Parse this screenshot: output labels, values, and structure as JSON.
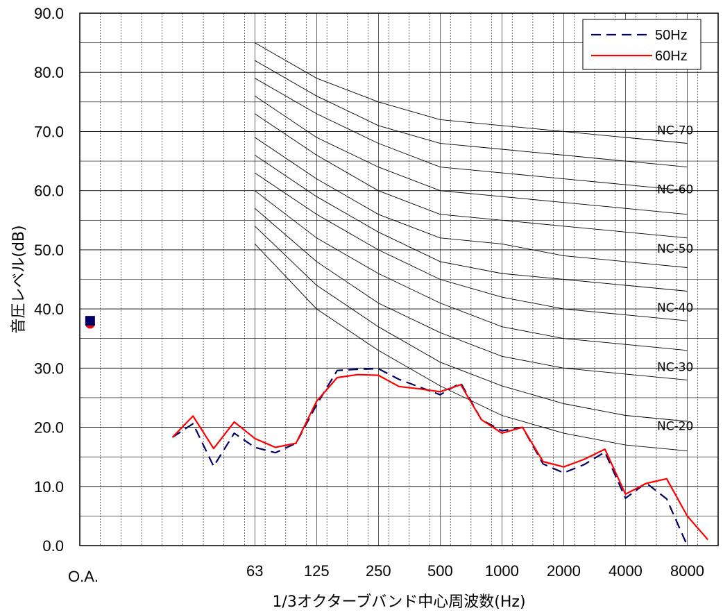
{
  "chart_data": {
    "type": "line",
    "xlabel": "1/3オクターブバンド中心周波数(Hz)",
    "ylabel": "音圧レベル(dB)",
    "ylim": [
      0,
      90
    ],
    "grid": true,
    "legend_position": "top-right",
    "x_positions": [
      "O.A.",
      "",
      "",
      "",
      "25",
      "31.5",
      "40",
      "50",
      "63",
      "80",
      "100",
      "125",
      "160",
      "200",
      "250",
      "315",
      "400",
      "500",
      "630",
      "800",
      "1000",
      "1250",
      "1600",
      "2000",
      "2500",
      "3150",
      "4000",
      "5000",
      "6300",
      "8000",
      "10000"
    ],
    "x_tick_labels": [
      {
        "index": 0,
        "label": "O.A."
      },
      {
        "index": 8,
        "label": "63"
      },
      {
        "index": 11,
        "label": "125"
      },
      {
        "index": 14,
        "label": "250"
      },
      {
        "index": 17,
        "label": "500"
      },
      {
        "index": 20,
        "label": "1000"
      },
      {
        "index": 23,
        "label": "2000"
      },
      {
        "index": 26,
        "label": "4000"
      },
      {
        "index": 29,
        "label": "8000"
      }
    ],
    "y_tick_labels": [
      "0.0",
      "10.0",
      "20.0",
      "30.0",
      "40.0",
      "50.0",
      "60.0",
      "70.0",
      "80.0",
      "90.0"
    ],
    "oa_values": {
      "50Hz": 38.0,
      "60Hz": 37.5
    },
    "series": [
      {
        "name": "50Hz",
        "color": "#000066",
        "dash": true,
        "start_index": 4,
        "values": [
          18.3,
          20.6,
          13.4,
          19.0,
          16.6,
          15.7,
          17.3,
          23.8,
          29.6,
          29.8,
          29.9,
          28.1,
          26.8,
          25.5,
          27.5,
          21.3,
          19.4,
          20.0,
          13.8,
          12.3,
          13.7,
          15.8,
          8.0,
          10.6,
          7.9,
          0.0
        ]
      },
      {
        "name": "60Hz",
        "color": "#ff0000",
        "dash": false,
        "start_index": 4,
        "values": [
          18.3,
          21.9,
          16.4,
          20.9,
          18.1,
          16.6,
          17.3,
          24.4,
          28.4,
          28.9,
          28.8,
          26.9,
          26.5,
          26.0,
          27.2,
          21.3,
          19.0,
          20.0,
          14.2,
          13.3,
          14.6,
          16.3,
          8.7,
          10.5,
          11.3,
          5.0,
          1.0
        ]
      }
    ],
    "nc_bands": [
      "63",
      "125",
      "250",
      "500",
      "1000",
      "2000",
      "4000",
      "8000"
    ],
    "nc_curves": [
      {
        "values": [
          85,
          79,
          75,
          72,
          71,
          70,
          69,
          68
        ]
      },
      {
        "values": [
          82,
          76,
          71,
          68,
          67,
          66,
          65,
          64
        ]
      },
      {
        "values": [
          79,
          73,
          68,
          64,
          63,
          62,
          61,
          60
        ]
      },
      {
        "values": [
          76,
          69,
          64,
          60,
          59,
          58,
          57,
          56
        ]
      },
      {
        "values": [
          73,
          66,
          60,
          56,
          55,
          54,
          53,
          52
        ]
      },
      {
        "values": [
          69,
          62,
          56,
          52,
          51,
          49,
          48,
          47
        ]
      },
      {
        "values": [
          66,
          59,
          53,
          48,
          46,
          45,
          44,
          43
        ]
      },
      {
        "values": [
          63,
          56,
          50,
          45,
          42,
          40,
          39,
          38
        ]
      },
      {
        "values": [
          60,
          52,
          46,
          41,
          37,
          35,
          34,
          33
        ]
      },
      {
        "values": [
          57,
          48,
          41,
          36,
          32,
          30,
          29,
          28
        ]
      },
      {
        "values": [
          54,
          44,
          37,
          31,
          27,
          24,
          22,
          21
        ]
      },
      {
        "values": [
          51,
          40,
          33,
          27,
          22,
          19,
          17,
          16
        ]
      }
    ],
    "nc_labels": [
      {
        "label": "NC-70",
        "value": 70
      },
      {
        "label": "NC-60",
        "value": 60
      },
      {
        "label": "NC-50",
        "value": 50
      },
      {
        "label": "NC-40",
        "value": 40
      },
      {
        "label": "NC-30",
        "value": 30
      },
      {
        "label": "NC-20",
        "value": 20
      }
    ]
  }
}
